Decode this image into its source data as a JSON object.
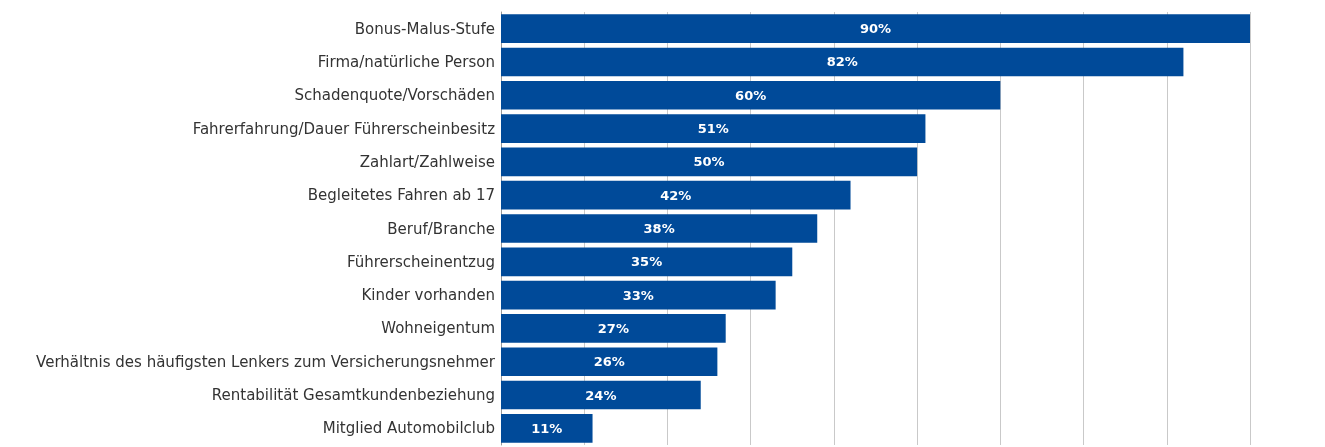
{
  "chart_data": {
    "type": "bar",
    "orientation": "horizontal",
    "categories": [
      "Bonus-Malus-Stufe",
      "Firma/natürliche Person",
      "Schadenquote/Vorschäden",
      "Fahrerfahrung/Dauer Führerscheinbesitz",
      "Zahlart/Zahlweise",
      "Begleitetes Fahren ab 17",
      "Beruf/Branche",
      "Führerscheinentzug",
      "Kinder vorhanden",
      "Wohneigentum",
      "Verhältnis des häufigsten Lenkers zum Versicherungsnehmer",
      "Rentabilität Gesamtkundenbeziehung",
      "Mitglied Automobilclub"
    ],
    "values": [
      90,
      82,
      60,
      51,
      50,
      42,
      38,
      35,
      33,
      27,
      26,
      24,
      11
    ],
    "value_labels": [
      "90%",
      "82%",
      "60%",
      "51%",
      "50%",
      "42%",
      "38%",
      "35%",
      "33%",
      "27%",
      "26%",
      "24%",
      "11%"
    ],
    "color": "#004a99",
    "xlim": [
      0,
      90
    ],
    "xticks": [
      {
        "value": 0,
        "label": null
      },
      {
        "value": 10,
        "label": null
      },
      {
        "value": 20,
        "label": null
      },
      {
        "value": 30,
        "label": null
      },
      {
        "value": 40,
        "label": null
      },
      {
        "value": 50,
        "label": null
      },
      {
        "value": 60,
        "label": null
      },
      {
        "value": 70,
        "label": null
      },
      {
        "value": 80,
        "label": null
      },
      {
        "value": 90,
        "label": null
      }
    ],
    "grid": "x",
    "tick_labels": "y"
  }
}
